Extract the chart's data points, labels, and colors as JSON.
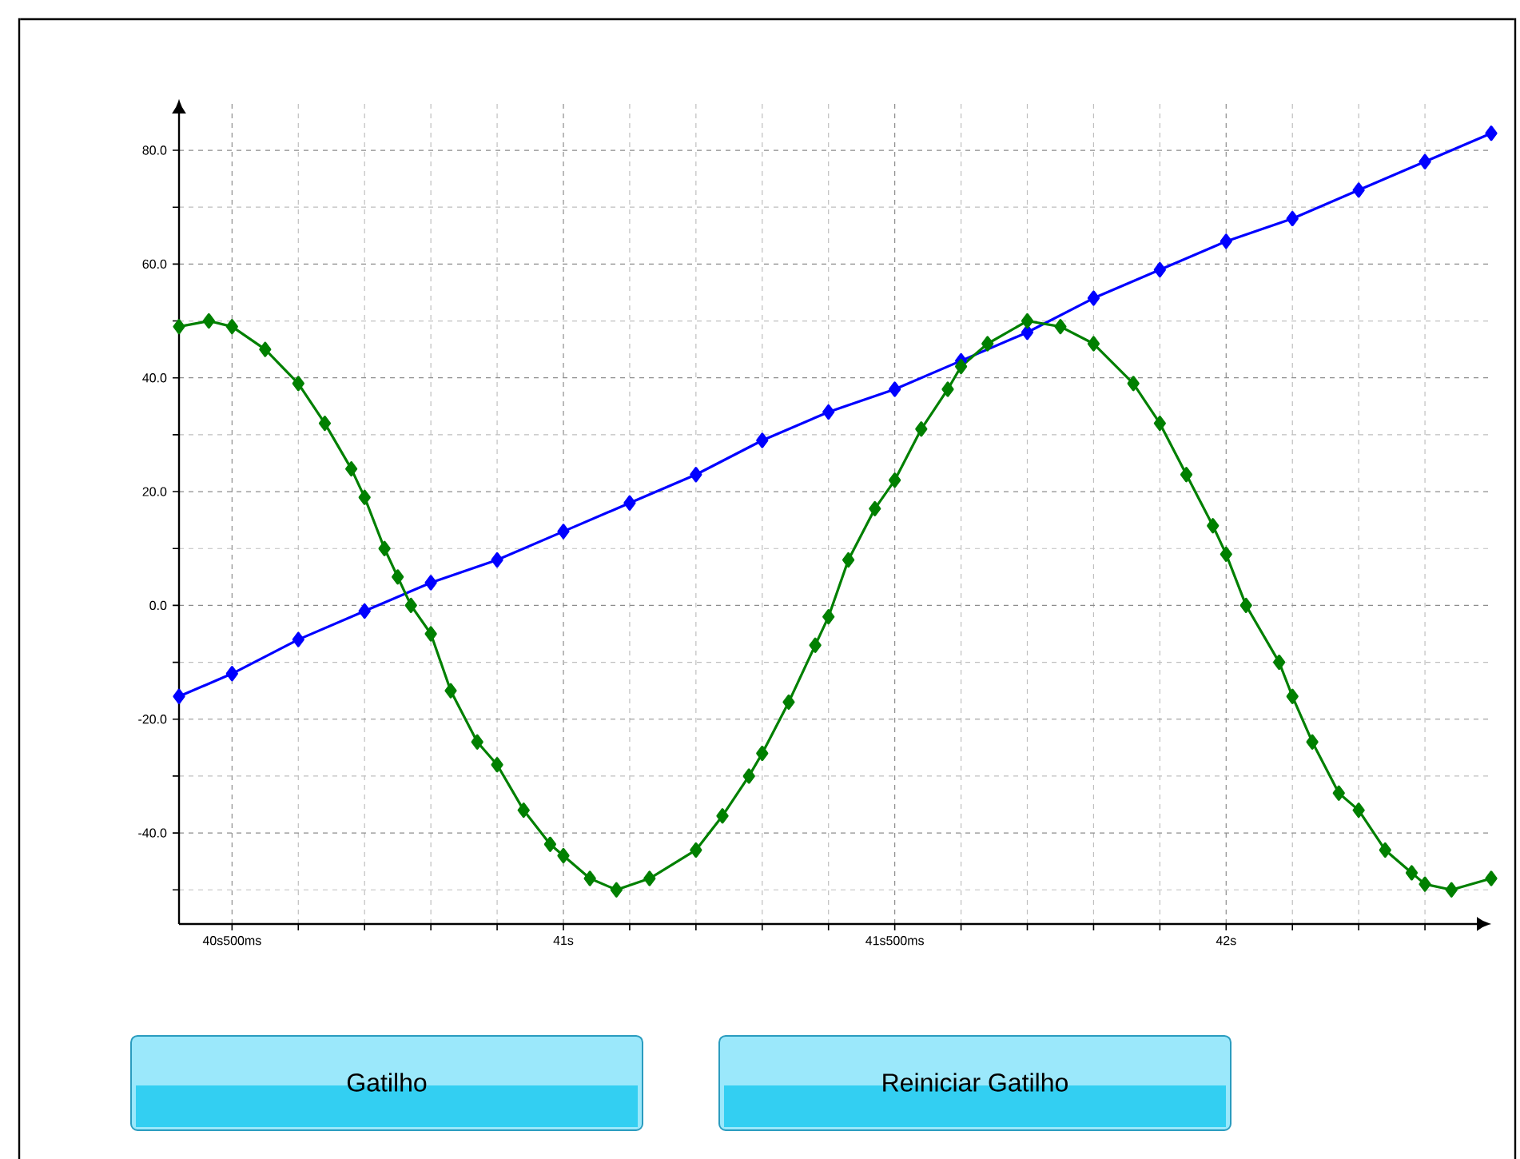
{
  "chart_data": {
    "type": "line",
    "xlim": [
      40.42,
      42.4
    ],
    "ylim": [
      -56,
      89
    ],
    "xticks": [
      {
        "value": 40.5,
        "label": "40s500ms"
      },
      {
        "value": 40.6,
        "label": null
      },
      {
        "value": 40.7,
        "label": null
      },
      {
        "value": 40.8,
        "label": null
      },
      {
        "value": 40.9,
        "label": null
      },
      {
        "value": 41,
        "label": "41s"
      },
      {
        "value": 41.1,
        "label": null
      },
      {
        "value": 41.2,
        "label": null
      },
      {
        "value": 41.3,
        "label": null
      },
      {
        "value": 41.4,
        "label": null
      },
      {
        "value": 41.5,
        "label": "41s500ms"
      },
      {
        "value": 41.6,
        "label": null
      },
      {
        "value": 41.7,
        "label": null
      },
      {
        "value": 41.8,
        "label": null
      },
      {
        "value": 41.9,
        "label": null
      },
      {
        "value": 42,
        "label": "42s"
      },
      {
        "value": 42.1,
        "label": null
      },
      {
        "value": 42.2,
        "label": null
      },
      {
        "value": 42.3,
        "label": null
      }
    ],
    "yticks": [
      {
        "value": -50,
        "label": null
      },
      {
        "value": -40,
        "label": "-40.0"
      },
      {
        "value": -30,
        "label": null
      },
      {
        "value": -20,
        "label": "-20.0"
      },
      {
        "value": -10,
        "label": null
      },
      {
        "value": 0,
        "label": "0.0"
      },
      {
        "value": 10,
        "label": null
      },
      {
        "value": 20,
        "label": "20.0"
      },
      {
        "value": 30,
        "label": null
      },
      {
        "value": 40,
        "label": "40.0"
      },
      {
        "value": 50,
        "label": null
      },
      {
        "value": 60,
        "label": "60.0"
      },
      {
        "value": 70,
        "label": null
      },
      {
        "value": 80,
        "label": "80.0"
      }
    ],
    "grid": true,
    "marker": "diamond",
    "line_style": "solid",
    "series": [
      {
        "color": "#0000ff",
        "x": [
          40.42,
          40.5,
          40.6,
          40.7,
          40.8,
          40.9,
          41.0,
          41.1,
          41.2,
          41.3,
          41.4,
          41.5,
          41.6,
          41.7,
          41.8,
          41.9,
          42.0,
          42.1,
          42.2,
          42.3,
          42.4
        ],
        "values": [
          -16,
          -12,
          -6,
          -1,
          4,
          8,
          13,
          18,
          23,
          29,
          34,
          38,
          43,
          48,
          54,
          59,
          64,
          68,
          73,
          78,
          83
        ]
      },
      {
        "color": "#008000",
        "x": [
          40.42,
          40.465,
          40.5,
          40.55,
          40.6,
          40.64,
          40.68,
          40.7,
          40.73,
          40.75,
          40.77,
          40.8,
          40.83,
          40.87,
          40.9,
          40.94,
          40.98,
          41.0,
          41.04,
          41.08,
          41.13,
          41.2,
          41.24,
          41.28,
          41.3,
          41.34,
          41.38,
          41.4,
          41.43,
          41.47,
          41.5,
          41.54,
          41.58,
          41.6,
          41.64,
          41.7,
          41.75,
          41.8,
          41.86,
          41.9,
          41.94,
          41.98,
          42.0,
          42.03,
          42.08,
          42.1,
          42.13,
          42.17,
          42.2,
          42.24,
          42.28,
          42.3,
          42.34,
          42.4
        ],
        "values": [
          49,
          50,
          49,
          45,
          39,
          32,
          24,
          19,
          10,
          5,
          0,
          -5,
          -15,
          -24,
          -28,
          -36,
          -42,
          -44,
          -48,
          -50,
          -48,
          -43,
          -37,
          -30,
          -26,
          -17,
          -7,
          -2,
          8,
          17,
          22,
          31,
          38,
          42,
          46,
          50,
          49,
          46,
          39,
          32,
          23,
          14,
          9,
          0,
          -10,
          -16,
          -24,
          -33,
          -36,
          -43,
          -47,
          -49,
          -50,
          -48
        ]
      }
    ],
    "annotations": [
      "Gatilho",
      "Reiniciar Gatilho"
    ]
  }
}
